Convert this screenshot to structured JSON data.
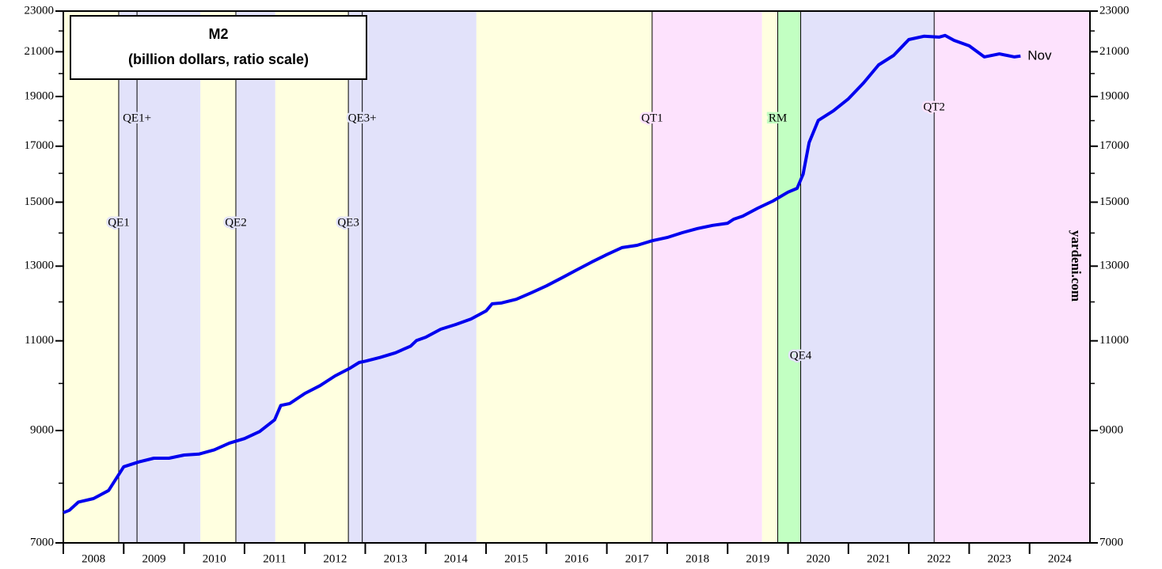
{
  "chart_data": {
    "type": "line",
    "title": "M2",
    "subtitle": "(billion dollars, ratio scale)",
    "watermark": "yardeni.com",
    "end_label": "Nov",
    "log_y": true,
    "xlim": [
      2008,
      2025
    ],
    "xticks": [
      2008,
      2009,
      2010,
      2011,
      2012,
      2013,
      2014,
      2015,
      2016,
      2017,
      2018,
      2019,
      2020,
      2021,
      2022,
      2023,
      2024
    ],
    "ylim": [
      7000,
      23000
    ],
    "yticks": [
      7000,
      9000,
      11000,
      13000,
      15000,
      17000,
      19000,
      21000,
      23000
    ],
    "y_minor_ticks": [
      8000,
      10000,
      12000,
      14000,
      16000,
      18000,
      20000,
      22000
    ],
    "series": [
      {
        "color": "#0000ee",
        "x": [
          2008.0,
          2008.1,
          2008.25,
          2008.5,
          2008.75,
          2009.0,
          2009.25,
          2009.5,
          2009.75,
          2010.0,
          2010.25,
          2010.5,
          2010.75,
          2011.0,
          2011.25,
          2011.5,
          2011.6,
          2011.75,
          2012.0,
          2012.25,
          2012.5,
          2012.75,
          2012.9,
          2013.0,
          2013.25,
          2013.5,
          2013.75,
          2013.85,
          2014.0,
          2014.25,
          2014.5,
          2014.75,
          2015.0,
          2015.1,
          2015.25,
          2015.5,
          2015.75,
          2016.0,
          2016.25,
          2016.5,
          2016.75,
          2017.0,
          2017.25,
          2017.5,
          2017.75,
          2018.0,
          2018.25,
          2018.5,
          2018.75,
          2019.0,
          2019.1,
          2019.25,
          2019.5,
          2019.75,
          2020.0,
          2020.15,
          2020.25,
          2020.35,
          2020.5,
          2020.75,
          2021.0,
          2021.25,
          2021.5,
          2021.75,
          2022.0,
          2022.25,
          2022.5,
          2022.6,
          2022.75,
          2023.0,
          2023.25,
          2023.5,
          2023.75,
          2023.85
        ],
        "values": [
          7490,
          7530,
          7670,
          7730,
          7870,
          8300,
          8390,
          8460,
          8460,
          8520,
          8540,
          8620,
          8750,
          8840,
          8980,
          9220,
          9520,
          9560,
          9780,
          9950,
          10170,
          10350,
          10480,
          10510,
          10600,
          10710,
          10870,
          11010,
          11090,
          11290,
          11410,
          11550,
          11760,
          11950,
          11970,
          12070,
          12250,
          12440,
          12660,
          12890,
          13120,
          13340,
          13550,
          13620,
          13760,
          13860,
          14010,
          14140,
          14240,
          14310,
          14440,
          14540,
          14800,
          15040,
          15340,
          15470,
          15970,
          17140,
          18010,
          18400,
          18900,
          19580,
          20390,
          20830,
          21580,
          21740,
          21700,
          21780,
          21540,
          21280,
          20760,
          20900,
          20760,
          20800
        ]
      }
    ],
    "regions": [
      {
        "start": 2008.0,
        "end": 2008.917,
        "color": "#ffffe0"
      },
      {
        "start": 2008.917,
        "end": 2010.27,
        "color": "#e2e2fa"
      },
      {
        "start": 2010.27,
        "end": 2010.857,
        "color": "#ffffe0"
      },
      {
        "start": 2010.857,
        "end": 2011.51,
        "color": "#e2e2fa"
      },
      {
        "start": 2011.51,
        "end": 2012.72,
        "color": "#ffffe0"
      },
      {
        "start": 2012.72,
        "end": 2014.84,
        "color": "#e2e2fa"
      },
      {
        "start": 2014.84,
        "end": 2017.75,
        "color": "#ffffe0"
      },
      {
        "start": 2017.75,
        "end": 2019.57,
        "color": "#fde2fd"
      },
      {
        "start": 2019.57,
        "end": 2019.83,
        "color": "#ffffe0"
      },
      {
        "start": 2019.83,
        "end": 2020.21,
        "color": "#c2ffc2"
      },
      {
        "start": 2020.21,
        "end": 2022.42,
        "color": "#e2e2fa"
      },
      {
        "start": 2022.42,
        "end": 2025.0,
        "color": "#fde2fd"
      }
    ],
    "events": [
      {
        "label": "QE1",
        "x": 2008.917
      },
      {
        "label": "QE1+",
        "x": 2009.22
      },
      {
        "label": "QE2",
        "x": 2010.857
      },
      {
        "label": "QE3",
        "x": 2012.72
      },
      {
        "label": "QE3+",
        "x": 2012.95
      },
      {
        "label": "QT1",
        "x": 2017.75
      },
      {
        "label": "RM",
        "x": 2019.83
      },
      {
        "label": "QE4",
        "x": 2020.21
      },
      {
        "label": "QT2",
        "x": 2022.42
      }
    ]
  }
}
